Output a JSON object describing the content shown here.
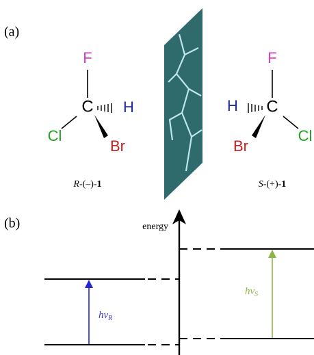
{
  "panel_a": {
    "label": "(a)",
    "molecules": [
      {
        "atoms": {
          "top": "F",
          "center": "C",
          "right": "H",
          "left": "Cl",
          "bottom": "Br"
        },
        "name": {
          "config": "R",
          "sign": "-(–)-",
          "number": "1"
        }
      },
      {
        "atoms": {
          "top": "F",
          "center": "C",
          "left": "H",
          "right": "Cl",
          "bottom": "Br"
        },
        "name": {
          "config": "S",
          "sign": "-(+)-",
          "number": "1"
        }
      }
    ]
  },
  "panel_b": {
    "label": "(b)",
    "axis_label": "energy",
    "transitions": [
      {
        "symbol": "hν",
        "subscript": "R"
      },
      {
        "symbol": "hν",
        "subscript": "S"
      }
    ]
  }
}
